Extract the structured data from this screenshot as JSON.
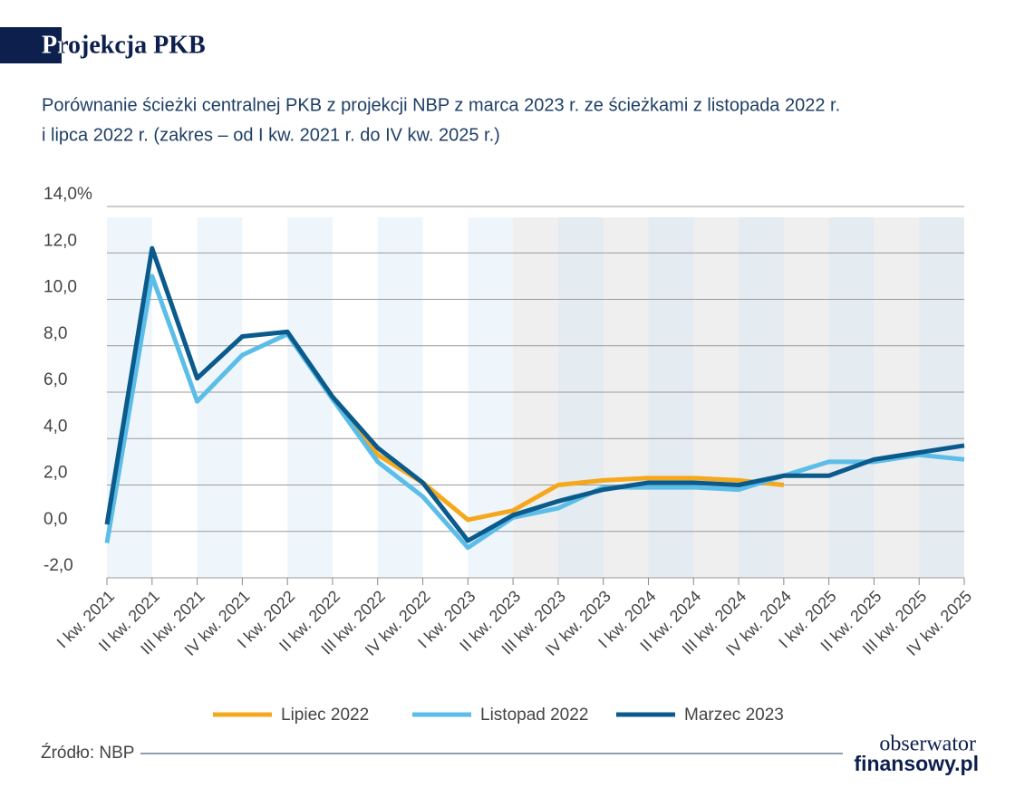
{
  "chart_data": {
    "type": "line",
    "title": "Projekcja PKB",
    "subtitle": [
      "Porównanie ścieżki centralnej PKB z projekcji NBP z marca 2023 r. ze ścieżkami z listopada 2022 r.",
      "i lipca 2022 r. (zakres – od I kw. 2021 r. do IV kw. 2025 r.)"
    ],
    "categories": [
      "I kw. 2021",
      "II kw. 2021",
      "III kw. 2021",
      "IV kw. 2021",
      "I kw. 2022",
      "II kw. 2022",
      "III kw. 2022",
      "IV kw. 2022",
      "I kw. 2023",
      "II kw. 2023",
      "III kw. 2023",
      "IV kw. 2023",
      "I kw. 2024",
      "II kw. 2024",
      "III kw. 2024",
      "IV kw. 2024",
      "I kw. 2025",
      "II kw. 2025",
      "III kw. 2025",
      "IV kw. 2025"
    ],
    "series": [
      {
        "name": "Lipiec 2022",
        "color": "#f5a81c",
        "values": [
          null,
          null,
          null,
          null,
          null,
          5.8,
          3.3,
          2.1,
          0.5,
          0.9,
          2.0,
          2.2,
          2.3,
          2.3,
          2.2,
          2.0,
          null,
          null,
          null,
          null
        ]
      },
      {
        "name": "Listopad 2022",
        "color": "#5bbde8",
        "values": [
          -0.5,
          11.0,
          5.6,
          7.6,
          8.5,
          5.7,
          3.0,
          1.5,
          -0.7,
          0.6,
          1.0,
          1.9,
          1.9,
          1.9,
          1.8,
          2.4,
          3.0,
          3.0,
          3.3,
          3.1
        ]
      },
      {
        "name": "Marzec 2023",
        "color": "#0b5a8c",
        "values": [
          0.3,
          12.2,
          6.6,
          8.4,
          8.6,
          5.8,
          3.6,
          2.1,
          -0.4,
          0.7,
          1.3,
          1.8,
          2.1,
          2.1,
          2.0,
          2.4,
          2.4,
          3.1,
          3.4,
          3.7
        ]
      }
    ],
    "ylim": [
      -2,
      14
    ],
    "yticks": [
      {
        "value": -2,
        "label": "-2,0"
      },
      {
        "value": 0,
        "label": "0,0"
      },
      {
        "value": 2,
        "label": "2,0"
      },
      {
        "value": 4,
        "label": "4,0"
      },
      {
        "value": 6,
        "label": "6,0"
      },
      {
        "value": 8,
        "label": "8,0"
      },
      {
        "value": 10,
        "label": "10,0"
      },
      {
        "value": 12,
        "label": "12,0"
      },
      {
        "value": 14,
        "label": "14,0%"
      }
    ],
    "grid": true,
    "source": "Źródło: NBP",
    "logo": [
      "obserwator",
      "finansowy.pl"
    ]
  }
}
